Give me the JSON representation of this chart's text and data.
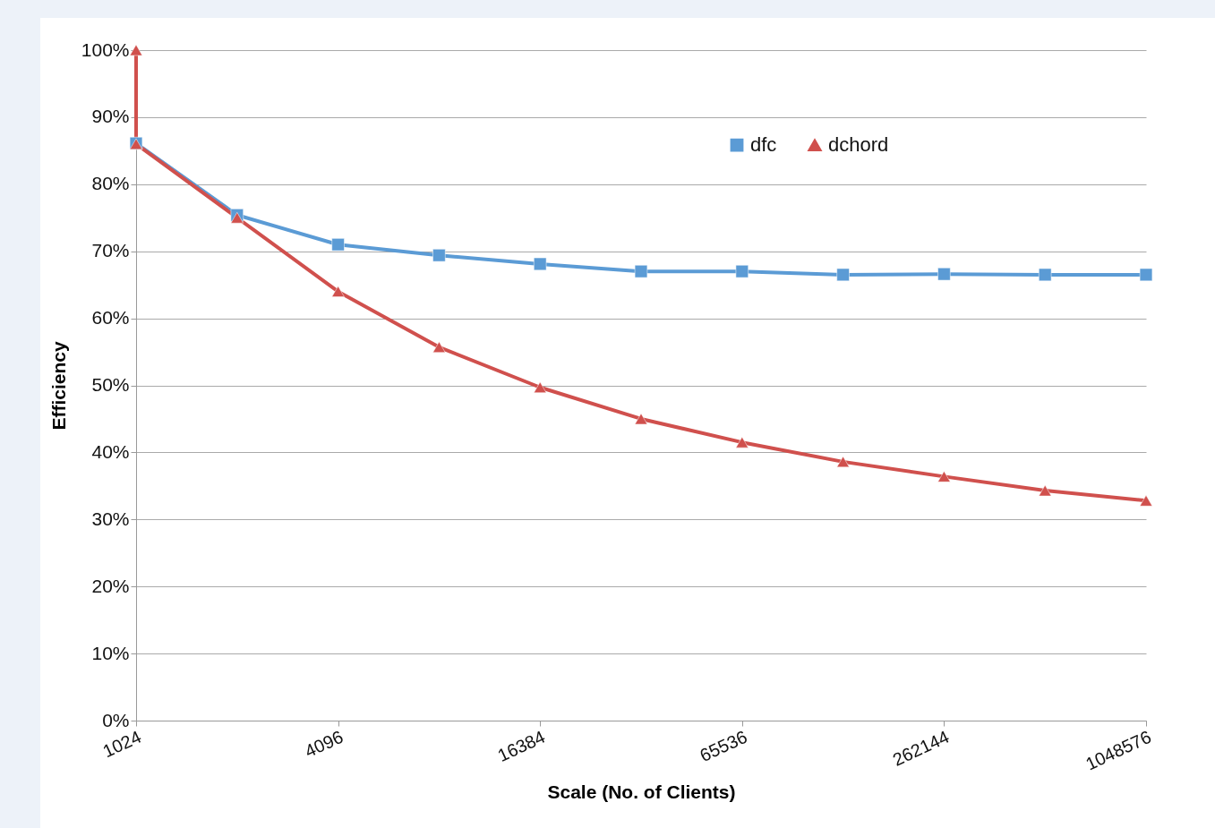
{
  "chart_data": {
    "type": "line",
    "xlabel": "Scale (No. of Clients)",
    "ylabel": "Efficiency",
    "x": [
      1024,
      2048,
      4096,
      8192,
      16384,
      32768,
      65536,
      131072,
      262144,
      524288,
      1048576
    ],
    "series": [
      {
        "name": "dfc",
        "color": "#5b9bd5",
        "marker": "square",
        "values": [
          86.1,
          75.4,
          71.0,
          69.4,
          68.1,
          67.0,
          67.0,
          66.5,
          66.6,
          66.5,
          66.5
        ]
      },
      {
        "name": "dchord",
        "color": "#d0504d",
        "marker": "triangle",
        "x": [
          1024,
          1024,
          2048,
          4096,
          8192,
          16384,
          32768,
          65536,
          131072,
          262144,
          524288,
          1048576
        ],
        "values": [
          100,
          86,
          75.0,
          64.0,
          55.7,
          49.7,
          45.0,
          41.5,
          38.6,
          36.4,
          34.3,
          32.8
        ]
      }
    ],
    "log": "x",
    "xlim": [
      1024,
      1048576
    ],
    "xticks": [
      1024,
      4096,
      16384,
      65536,
      262144,
      1048576
    ],
    "ylim": [
      0,
      100
    ],
    "yticks": [
      {
        "value": 0,
        "label": "0%"
      },
      {
        "value": 10,
        "label": "10%"
      },
      {
        "value": 20,
        "label": "20%"
      },
      {
        "value": 30,
        "label": "30%"
      },
      {
        "value": 40,
        "label": "40%"
      },
      {
        "value": 50,
        "label": "50%"
      },
      {
        "value": 60,
        "label": "60%"
      },
      {
        "value": 70,
        "label": "70%"
      },
      {
        "value": 80,
        "label": "80%"
      },
      {
        "value": 90,
        "label": "90%"
      },
      {
        "value": 100,
        "label": "100%"
      }
    ],
    "grid": "y",
    "legend": "top right",
    "line_style": "solid"
  }
}
